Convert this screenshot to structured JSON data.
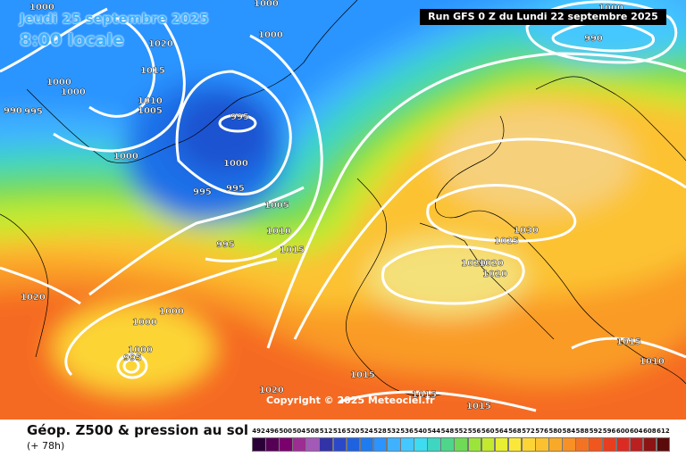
{
  "header": {
    "date": "Jeudi 25 septembre 2025",
    "time": "8:00 locale",
    "run_info": "Run GFS 0 Z du Lundi 22 septembre 2025"
  },
  "map": {
    "copyright": "Copyright © 2025 Meteociel.fr",
    "pressure_labels": [
      "1000",
      "1000",
      "1000",
      "1020",
      "1015",
      "1000",
      "1000",
      "990",
      "995",
      "1010",
      "1005",
      "995",
      "1000",
      "1000",
      "995",
      "995",
      "995",
      "1005",
      "1010",
      "1015",
      "1030",
      "1025",
      "1020",
      "1020",
      "1020",
      "1020",
      "1000",
      "1000",
      "1000",
      "995",
      "1015",
      "1020",
      "1015",
      "1015",
      "1015",
      "1010",
      "1000",
      "990"
    ]
  },
  "footer": {
    "title": "Géop. Z500 & pression au sol",
    "subtitle": "(+ 78h)"
  },
  "legend": {
    "values": [
      "492",
      "496",
      "500",
      "504",
      "508",
      "512",
      "516",
      "520",
      "524",
      "528",
      "532",
      "536",
      "540",
      "544",
      "548",
      "552",
      "556",
      "560",
      "564",
      "568",
      "572",
      "576",
      "580",
      "584",
      "588",
      "592",
      "596",
      "600",
      "604",
      "608",
      "612"
    ],
    "colors": [
      "#2b0038",
      "#550055",
      "#7a006e",
      "#9c2e93",
      "#a259b8",
      "#3333a8",
      "#2a48c8",
      "#1f62e0",
      "#1e7bf0",
      "#2b94ff",
      "#3fb2ff",
      "#45c8ff",
      "#3ddcf0",
      "#3ed6c0",
      "#4ed68a",
      "#6fda55",
      "#9be43a",
      "#c4ea2e",
      "#e8ee30",
      "#fbe73a",
      "#fcd535",
      "#fbc12e",
      "#f9a928",
      "#f79025",
      "#f47322",
      "#f0571f",
      "#e93d1f",
      "#dc2b22",
      "#bb1f1f",
      "#8c1414",
      "#5a0a0a"
    ]
  },
  "colors": {
    "isobar": "#ffffff",
    "run_box_bg": "#000000",
    "date_text": "#3fb2ff"
  }
}
